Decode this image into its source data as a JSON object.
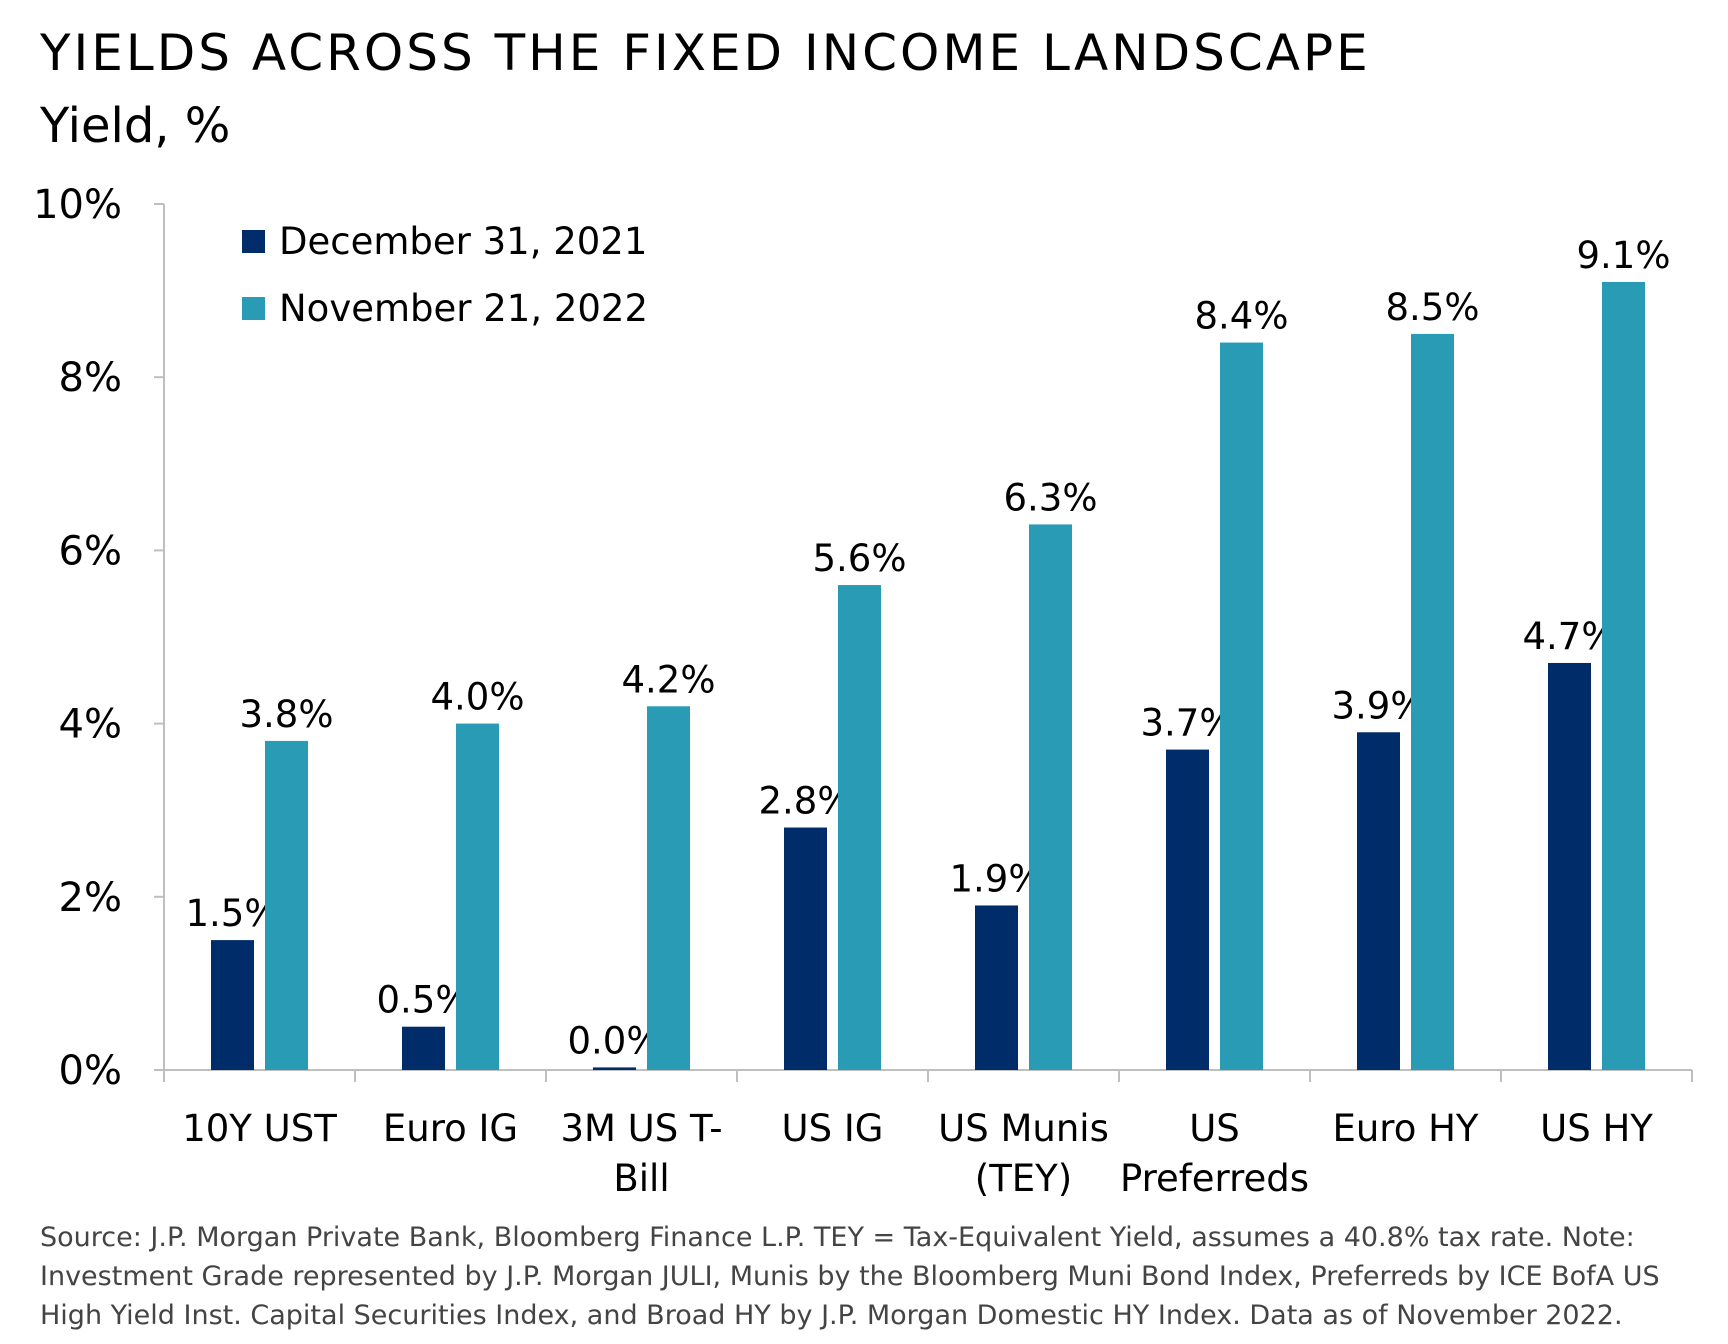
{
  "title": "YIELDS ACROSS THE FIXED INCOME LANDSCAPE",
  "subtitle": "Yield, %",
  "source": "Source: J.P. Morgan Private Bank, Bloomberg Finance L.P. TEY = Tax-Equivalent Yield, assumes a 40.8% tax rate. Note: Investment Grade represented by J.P. Morgan JULI, Munis by the Bloomberg Muni Bond Index, Preferreds by ICE BofA US High Yield Inst. Capital Securities Index, and Broad HY by J.P. Morgan Domestic HY Index. Data as of November 2022.",
  "colors": {
    "series1": "#002d6a",
    "series2": "#2a9bb5",
    "axis": "#bfbfbf"
  },
  "chart_data": {
    "type": "bar",
    "title": "YIELDS ACROSS THE FIXED INCOME LANDSCAPE",
    "ylabel": "Yield, %",
    "xlabel": "",
    "ylim": [
      0,
      10
    ],
    "yticks": [
      0,
      2,
      4,
      6,
      8,
      10
    ],
    "ytick_labels": [
      "0%",
      "2%",
      "4%",
      "6%",
      "8%",
      "10%"
    ],
    "legend_position": "top-left",
    "categories": [
      [
        "10Y UST"
      ],
      [
        "Euro IG"
      ],
      [
        "3M US T-",
        "Bill"
      ],
      [
        "US IG"
      ],
      [
        "US Munis",
        "(TEY)"
      ],
      [
        "US",
        "Preferreds"
      ],
      [
        "Euro HY"
      ],
      [
        "US HY"
      ]
    ],
    "series": [
      {
        "name": "December 31, 2021",
        "values": [
          1.5,
          0.5,
          0.03,
          2.8,
          1.9,
          3.7,
          3.9,
          4.7
        ],
        "labels": [
          "1.5%",
          "0.5%",
          "0.0%",
          "2.8%",
          "1.9%",
          "3.7%",
          "3.9%",
          "4.7%"
        ]
      },
      {
        "name": "November 21, 2022",
        "values": [
          3.8,
          4.0,
          4.2,
          5.6,
          6.3,
          8.4,
          8.5,
          9.1
        ],
        "labels": [
          "3.8%",
          "4.0%",
          "4.2%",
          "5.6%",
          "6.3%",
          "8.4%",
          "8.5%",
          "9.1%"
        ]
      }
    ]
  }
}
